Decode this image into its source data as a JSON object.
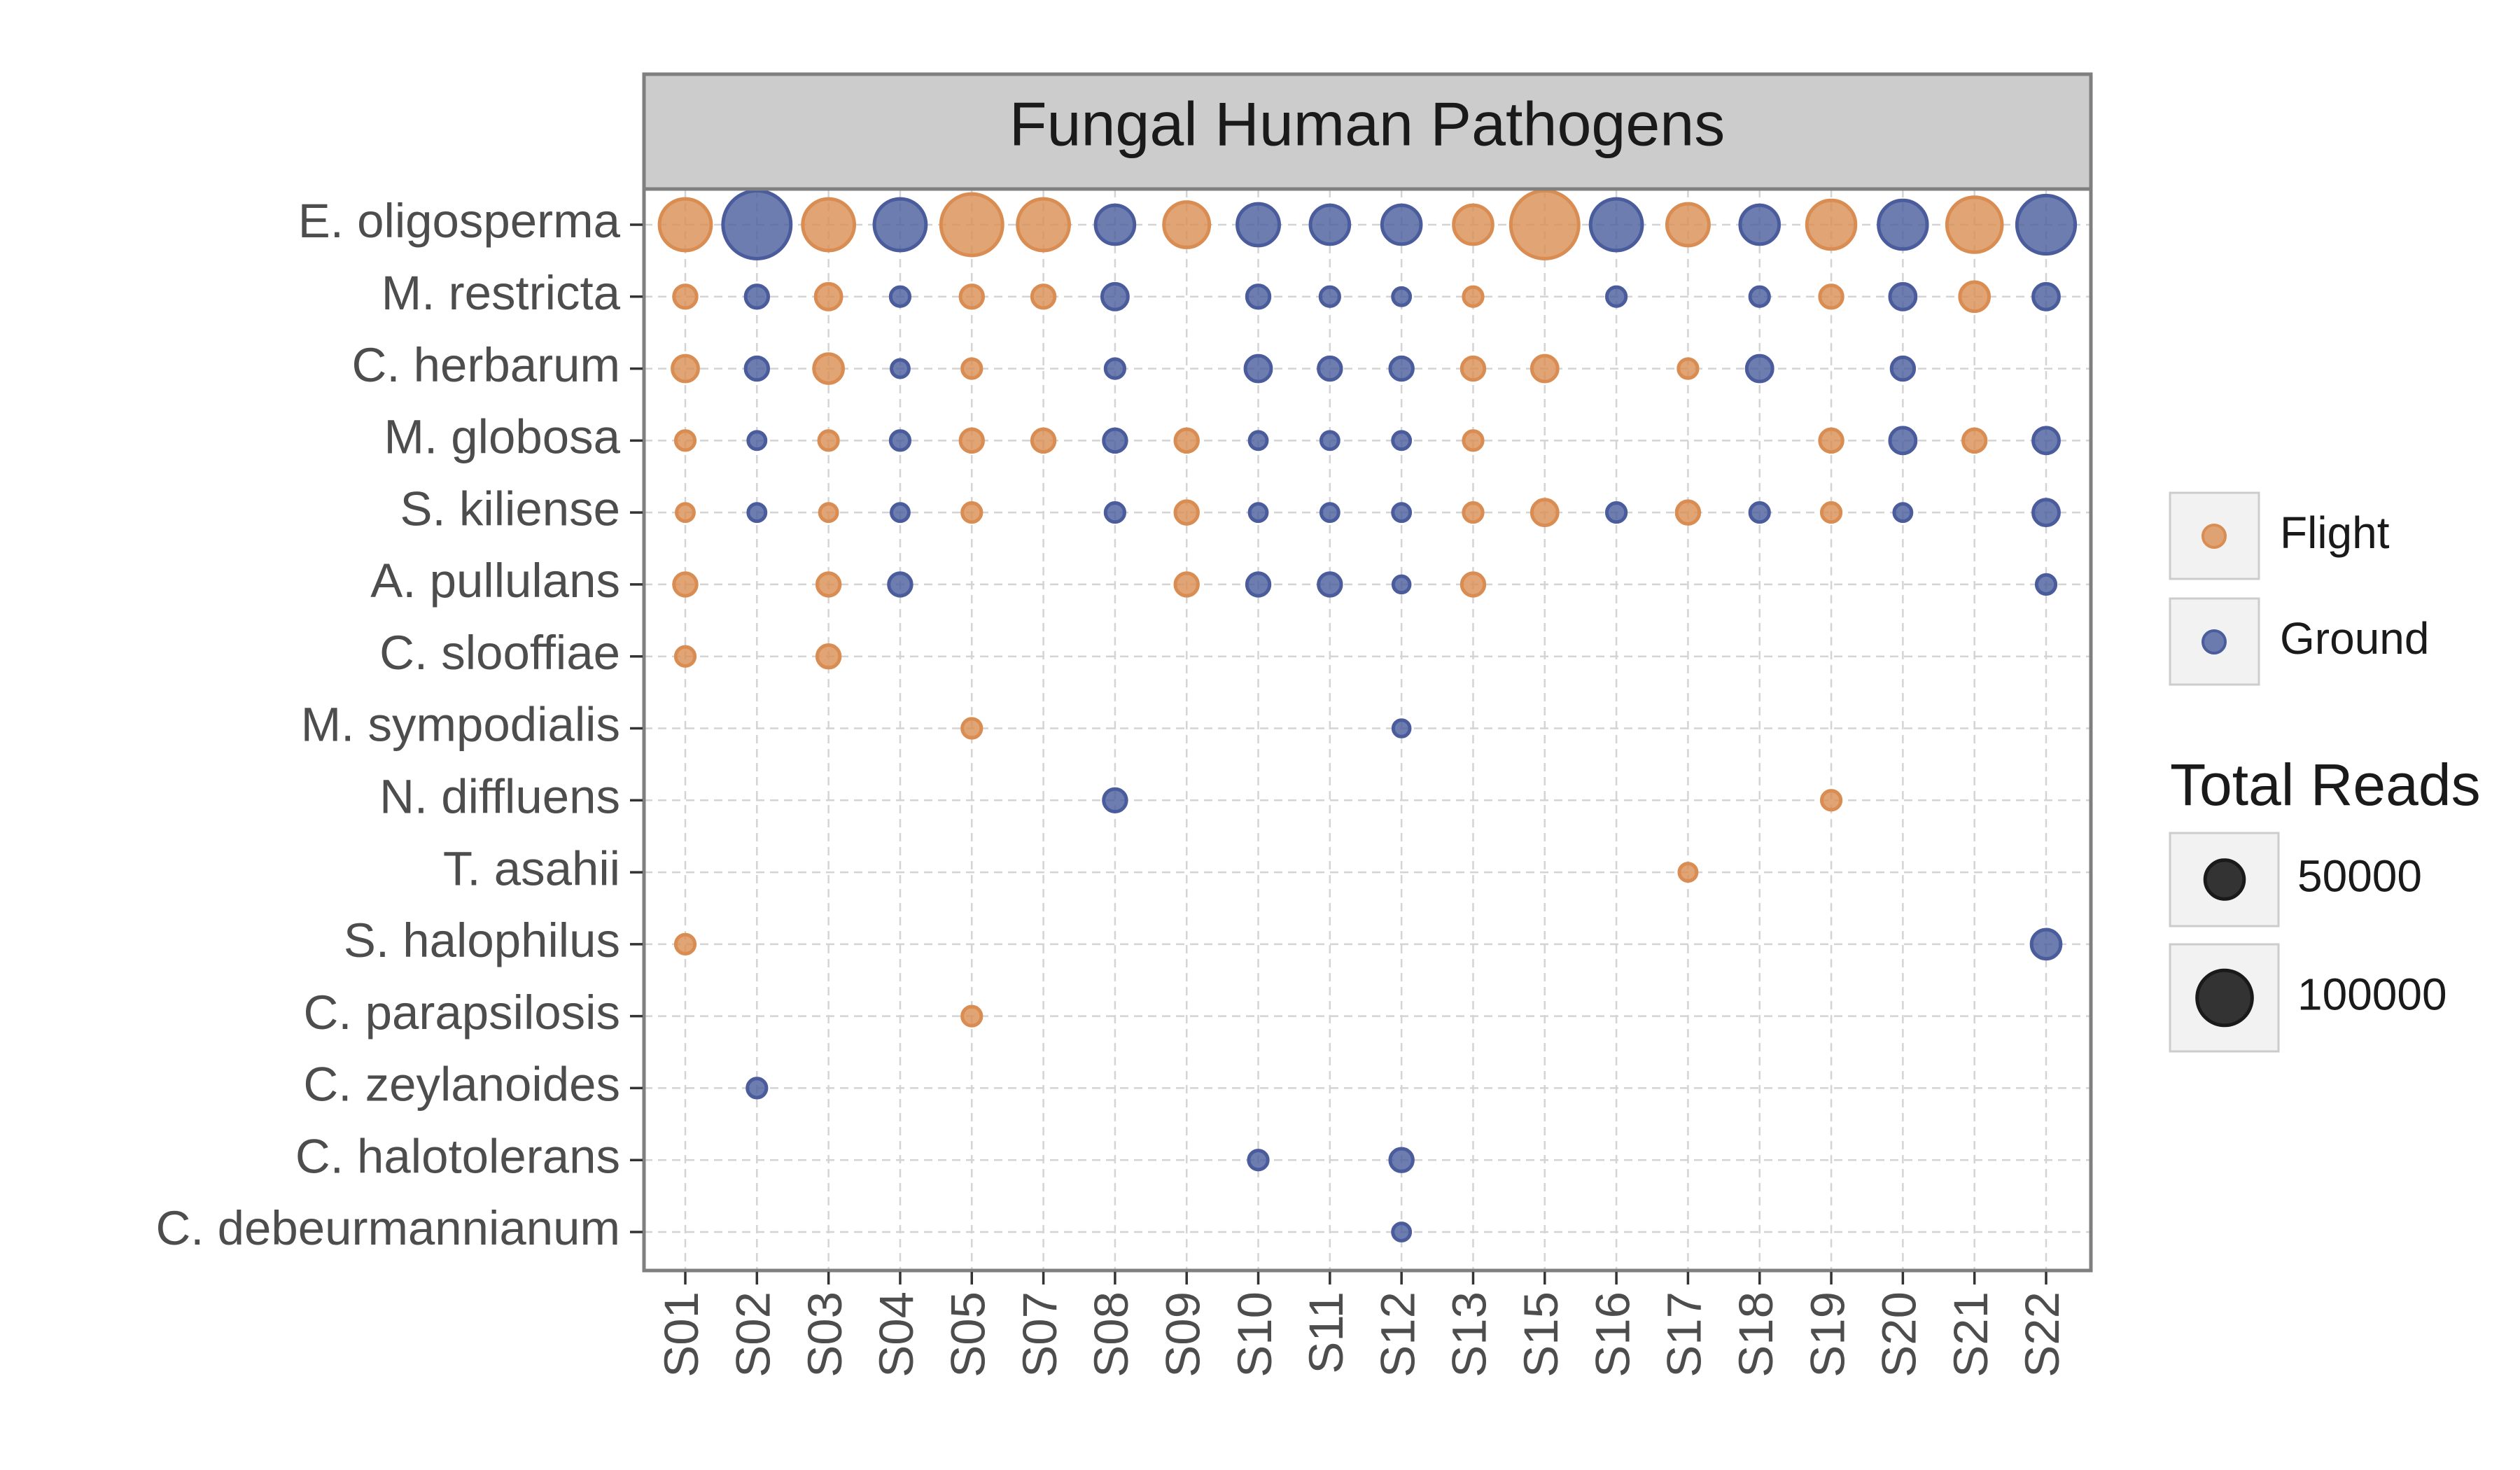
{
  "chart_data": {
    "type": "scatter",
    "title": "Fungal Human Pathogens",
    "categories": [
      "S01",
      "S02",
      "S03",
      "S04",
      "S05",
      "S07",
      "S08",
      "S09",
      "S10",
      "S11",
      "S12",
      "S13",
      "S15",
      "S16",
      "S17",
      "S18",
      "S19",
      "S20",
      "S21",
      "S22"
    ],
    "y_categories": [
      "E. oligosperma",
      "M. restricta",
      "C. herbarum",
      "M. globosa",
      "S. kiliense",
      "A. pullulans",
      "C. slooffiae",
      "M. sympodialis",
      "N. diffluens",
      "T. asahii",
      "S. halophilus",
      "C. parapsilosis",
      "C. zeylanoides",
      "C. halotolerans",
      "C. debeurmannianum"
    ],
    "grid": true,
    "legend_position": "right",
    "size_legend": {
      "title": "Total Reads",
      "values": [
        50000,
        100000
      ]
    },
    "series": [
      {
        "name": "Flight",
        "color": "#d98d52",
        "x": [
          "S01",
          "S03",
          "S05",
          "S07",
          "S09",
          "S13",
          "S15",
          "S17",
          "S19",
          "S21",
          "S01",
          "S03",
          "S05",
          "S07",
          "S13",
          "S19",
          "S21",
          "S01",
          "S03",
          "S05",
          "S13",
          "S15",
          "S17",
          "S01",
          "S03",
          "S05",
          "S07",
          "S09",
          "S13",
          "S19",
          "S21",
          "S01",
          "S03",
          "S05",
          "S09",
          "S13",
          "S15",
          "S17",
          "S19",
          "S01",
          "S03",
          "S09",
          "S13",
          "S01",
          "S03",
          "S05",
          "S19",
          "S17",
          "S01",
          "S05"
        ],
        "y": [
          "E. oligosperma",
          "E. oligosperma",
          "E. oligosperma",
          "E. oligosperma",
          "E. oligosperma",
          "E. oligosperma",
          "E. oligosperma",
          "E. oligosperma",
          "E. oligosperma",
          "E. oligosperma",
          "M. restricta",
          "M. restricta",
          "M. restricta",
          "M. restricta",
          "M. restricta",
          "M. restricta",
          "M. restricta",
          "C. herbarum",
          "C. herbarum",
          "C. herbarum",
          "C. herbarum",
          "C. herbarum",
          "C. herbarum",
          "M. globosa",
          "M. globosa",
          "M. globosa",
          "M. globosa",
          "M. globosa",
          "M. globosa",
          "M. globosa",
          "M. globosa",
          "S. kiliense",
          "S. kiliense",
          "S. kiliense",
          "S. kiliense",
          "S. kiliense",
          "S. kiliense",
          "S. kiliense",
          "S. kiliense",
          "A. pullulans",
          "A. pullulans",
          "A. pullulans",
          "A. pullulans",
          "C. slooffiae",
          "C. slooffiae",
          "M. sympodialis",
          "N. diffluens",
          "T. asahii",
          "S. halophilus",
          "C. parapsilosis"
        ],
        "values": [
          88000,
          88000,
          125000,
          88000,
          68000,
          50000,
          152000,
          58000,
          78000,
          100000,
          17000,
          22000,
          17000,
          17000,
          12000,
          17000,
          28000,
          22000,
          28000,
          12000,
          17000,
          22000,
          12000,
          12000,
          12000,
          17000,
          17000,
          17000,
          12000,
          17000,
          17000,
          10000,
          10000,
          12000,
          17000,
          12000,
          22000,
          17000,
          12000,
          17000,
          17000,
          17000,
          17000,
          12000,
          17000,
          12000,
          12000,
          10000,
          12000,
          12000
        ]
      },
      {
        "name": "Ground",
        "color": "#4a5c9c",
        "x": [
          "S02",
          "S04",
          "S08",
          "S10",
          "S11",
          "S12",
          "S16",
          "S18",
          "S20",
          "S22",
          "S02",
          "S04",
          "S08",
          "S10",
          "S11",
          "S12",
          "S16",
          "S18",
          "S20",
          "S22",
          "S02",
          "S04",
          "S08",
          "S10",
          "S11",
          "S12",
          "S18",
          "S20",
          "S02",
          "S04",
          "S08",
          "S10",
          "S11",
          "S12",
          "S20",
          "S22",
          "S02",
          "S04",
          "S08",
          "S10",
          "S11",
          "S12",
          "S16",
          "S18",
          "S20",
          "S22",
          "S04",
          "S10",
          "S11",
          "S12",
          "S22",
          "S12",
          "S08",
          "S22",
          "S02",
          "S10",
          "S12",
          "S12"
        ],
        "y": [
          "E. oligosperma",
          "E. oligosperma",
          "E. oligosperma",
          "E. oligosperma",
          "E. oligosperma",
          "E. oligosperma",
          "E. oligosperma",
          "E. oligosperma",
          "E. oligosperma",
          "E. oligosperma",
          "M. restricta",
          "M. restricta",
          "M. restricta",
          "M. restricta",
          "M. restricta",
          "M. restricta",
          "M. restricta",
          "M. restricta",
          "M. restricta",
          "M. restricta",
          "C. herbarum",
          "C. herbarum",
          "C. herbarum",
          "C. herbarum",
          "C. herbarum",
          "C. herbarum",
          "C. herbarum",
          "C. herbarum",
          "M. globosa",
          "M. globosa",
          "M. globosa",
          "M. globosa",
          "M. globosa",
          "M. globosa",
          "M. globosa",
          "M. globosa",
          "S. kiliense",
          "S. kiliense",
          "S. kiliense",
          "S. kiliense",
          "S. kiliense",
          "S. kiliense",
          "S. kiliense",
          "S. kiliense",
          "S. kiliense",
          "S. kiliense",
          "A. pullulans",
          "A. pullulans",
          "A. pullulans",
          "A. pullulans",
          "A. pullulans",
          "M. sympodialis",
          "N. diffluens",
          "S. halophilus",
          "C. zeylanoides",
          "C. halotolerans",
          "C. halotolerans",
          "C. debeurmannianum"
        ],
        "values": [
          152000,
          88000,
          50000,
          58000,
          50000,
          50000,
          88000,
          50000,
          78000,
          112000,
          17000,
          12000,
          22000,
          17000,
          12000,
          10000,
          12000,
          12000,
          22000,
          22000,
          17000,
          10000,
          12000,
          22000,
          17000,
          17000,
          22000,
          17000,
          10000,
          12000,
          17000,
          10000,
          10000,
          10000,
          22000,
          22000,
          10000,
          10000,
          12000,
          10000,
          10000,
          10000,
          12000,
          12000,
          10000,
          22000,
          17000,
          17000,
          17000,
          9000,
          12000,
          9000,
          17000,
          28000,
          12000,
          12000,
          17000,
          10000
        ]
      }
    ]
  }
}
